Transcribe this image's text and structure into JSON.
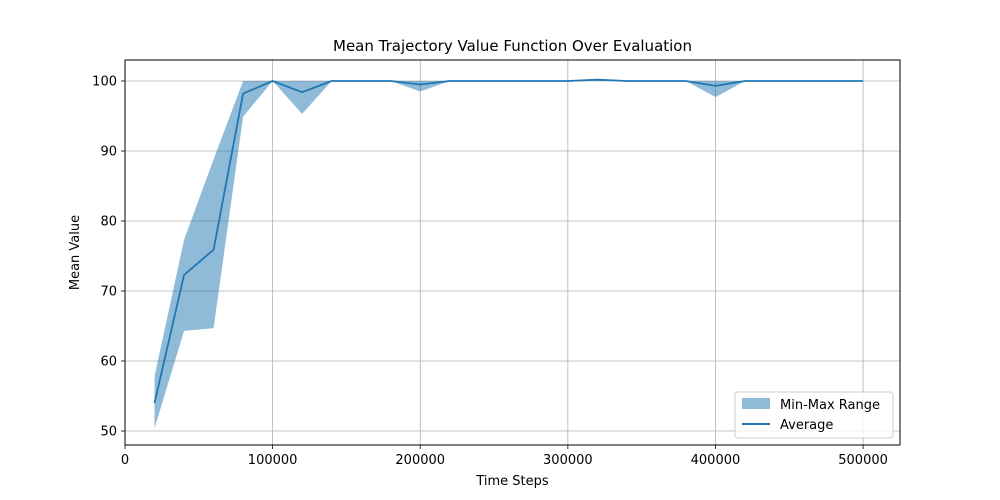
{
  "chart_data": {
    "type": "line",
    "title": "Mean Trajectory Value Function Over Evaluation",
    "xlabel": "Time Steps",
    "ylabel": "Mean Value",
    "xlim": [
      0,
      525000
    ],
    "ylim": [
      48,
      103
    ],
    "x_ticks": [
      0,
      100000,
      200000,
      300000,
      400000,
      500000
    ],
    "y_ticks": [
      50,
      60,
      70,
      80,
      90,
      100
    ],
    "grid": true,
    "legend_position": "lower-right",
    "x": [
      20000,
      40000,
      60000,
      80000,
      100000,
      120000,
      140000,
      160000,
      180000,
      200000,
      220000,
      240000,
      260000,
      280000,
      300000,
      320000,
      340000,
      360000,
      380000,
      400000,
      420000,
      440000,
      460000,
      480000,
      500000
    ],
    "series": [
      {
        "name": "Average",
        "kind": "line",
        "color": "#1f77b4",
        "values": [
          54.0,
          72.3,
          75.9,
          98.2,
          100.0,
          98.4,
          100.0,
          100.0,
          100.0,
          99.5,
          100.0,
          100.0,
          100.0,
          100.0,
          100.0,
          100.2,
          100.0,
          100.0,
          100.0,
          99.3,
          100.0,
          100.0,
          100.0,
          100.0,
          100.0
        ]
      },
      {
        "name": "Min-Max Range",
        "kind": "band",
        "color": "#1f77b4",
        "opacity": 0.5,
        "min": [
          50.4,
          64.3,
          64.7,
          94.9,
          100.0,
          95.3,
          100.0,
          100.0,
          100.0,
          98.5,
          100.0,
          100.0,
          100.0,
          100.0,
          100.0,
          100.0,
          100.0,
          100.0,
          100.0,
          97.7,
          100.0,
          100.0,
          100.0,
          100.0,
          100.0
        ],
        "max": [
          57.8,
          77.3,
          88.8,
          100.0,
          100.0,
          100.0,
          100.0,
          100.0,
          100.0,
          100.0,
          100.0,
          100.0,
          100.0,
          100.0,
          100.0,
          100.2,
          100.0,
          100.0,
          100.0,
          100.0,
          100.0,
          100.0,
          100.0,
          100.0,
          100.0
        ]
      }
    ]
  }
}
